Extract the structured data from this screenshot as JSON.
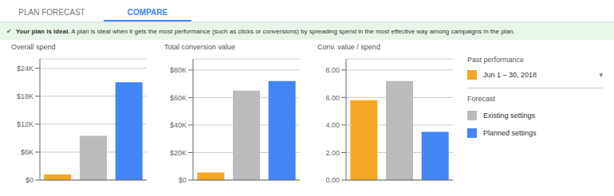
{
  "annotations": [
    "PLAN FORECAST",
    "COMPARE",
    "✔",
    "Your plan is ideal.",
    "A plan is ideal when it gets the most performance (such as clicks or conversions) by spreading spend in the most effective way among campaigns in the plan.",
    "Past performance",
    "▾",
    "Forecast"
  ],
  "legend": "right",
  "chart_data": [
    {
      "type": "bar",
      "title": "Overall spend",
      "categories": [
        "Jun 1 – 30, 2018",
        "Existing settings",
        "Planned settings"
      ],
      "values": [
        1200,
        9500,
        21000
      ],
      "colors": [
        "#F5A623",
        "#BBBBBB",
        "#4285F4"
      ],
      "ylim": [
        0,
        26000
      ],
      "yticks": [
        {
          "value": 0,
          "label": "$0"
        },
        {
          "value": 6000,
          "label": "$6K"
        },
        {
          "value": 12000,
          "label": "$12K"
        },
        {
          "value": 18000,
          "label": "$18K"
        },
        {
          "value": 24000,
          "label": "$24K"
        }
      ],
      "grid": true,
      "tick_labels": "y"
    },
    {
      "type": "bar",
      "title": "Total conversion value",
      "categories": [
        "Jun 1 – 30, 2018",
        "Existing settings",
        "Planned settings"
      ],
      "values": [
        5500,
        65000,
        72000
      ],
      "colors": [
        "#F5A623",
        "#BBBBBB",
        "#4285F4"
      ],
      "ylim": [
        0,
        88000
      ],
      "yticks": [
        {
          "value": 0,
          "label": "$0"
        },
        {
          "value": 20000,
          "label": "$20K"
        },
        {
          "value": 40000,
          "label": "$40K"
        },
        {
          "value": 60000,
          "label": "$60K"
        },
        {
          "value": 80000,
          "label": "$80K"
        }
      ],
      "grid": true,
      "tick_labels": "y"
    },
    {
      "type": "bar",
      "title": "Conv. value / spend",
      "categories": [
        "Jun 1 – 30, 2018",
        "Existing settings",
        "Planned settings"
      ],
      "values": [
        5.8,
        7.2,
        3.5
      ],
      "colors": [
        "#F5A623",
        "#BBBBBB",
        "#4285F4"
      ],
      "ylim": [
        0,
        8.8
      ],
      "yticks": [
        {
          "value": 0,
          "label": "0.00"
        },
        {
          "value": 2,
          "label": "2.00"
        },
        {
          "value": 4,
          "label": "4.00"
        },
        {
          "value": 6,
          "label": "6.00"
        },
        {
          "value": 8,
          "label": "8.00"
        }
      ],
      "grid": true,
      "tick_labels": "y"
    }
  ]
}
